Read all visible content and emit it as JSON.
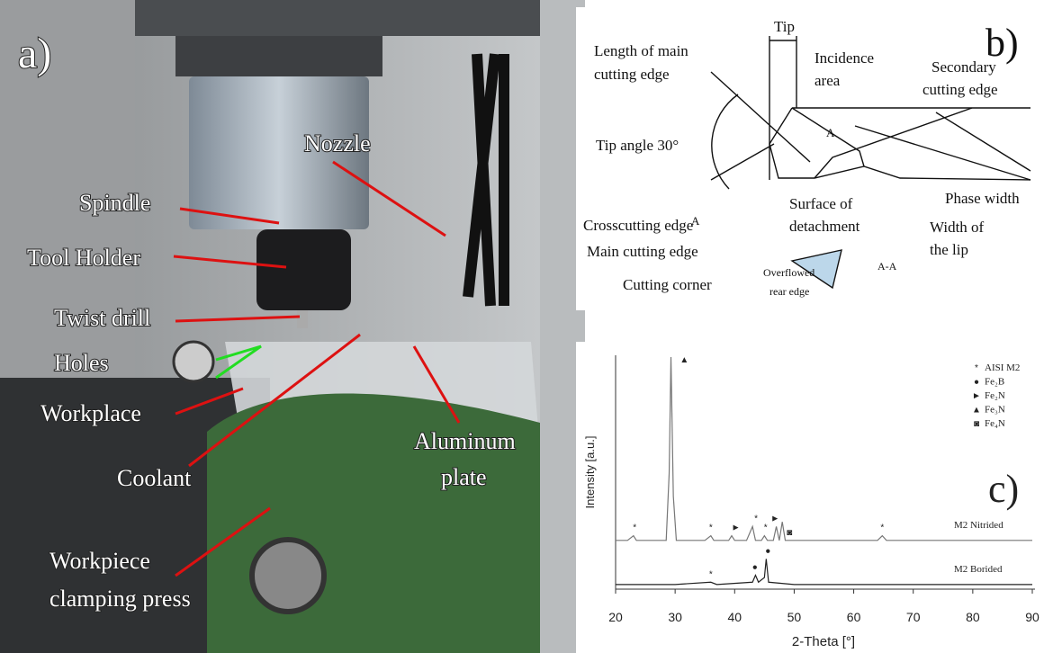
{
  "panel_a": {
    "label": "a)",
    "labels": {
      "nozzle": "Nozzle",
      "spindle": "Spindle",
      "tool_holder": "Tool Holder",
      "twist_drill": "Twist drill",
      "holes": "Holes",
      "workplace": "Workplace",
      "coolant": "Coolant",
      "aluminum_plate": [
        "Aluminum",
        "plate"
      ],
      "clamping_press": [
        "Workpiece",
        "clamping press"
      ]
    }
  },
  "panel_b": {
    "label": "b)",
    "labels": {
      "tip": "Tip",
      "length_main": [
        "Length of main",
        "cutting edge"
      ],
      "incidence": [
        "Incidence",
        "area"
      ],
      "secondary": [
        "Secondary",
        "cutting edge"
      ],
      "tip_angle": "Tip angle 30°",
      "section_a1": "A",
      "section_a2": "A",
      "phase_width": "Phase width",
      "crosscutting": "Crosscutting edge",
      "surface": [
        "Surface of",
        "detachment"
      ],
      "width_lip": [
        "Width of",
        "the lip"
      ],
      "main_edge": "Main cutting edge",
      "corner": "Cutting corner",
      "overflowed": [
        "Overflowed",
        "rear edge"
      ],
      "section_aa": "A-A"
    }
  },
  "chart_data": {
    "type": "line",
    "panel_label": "c)",
    "x_label": "2-Theta [°]",
    "y_label": "Intensity [a.u.]",
    "xlim": [
      20,
      90
    ],
    "xticks": [
      20,
      30,
      40,
      50,
      60,
      70,
      80,
      90
    ],
    "ylim": [
      0,
      100
    ],
    "legend": [
      {
        "symbol": "*",
        "label": "AISI M2"
      },
      {
        "symbol": "●",
        "label": "Fe₂B"
      },
      {
        "symbol": "►",
        "label": "Fe₂N"
      },
      {
        "symbol": "▲",
        "label": "Fe₃N"
      },
      {
        "symbol": "◙",
        "label": "Fe₄N"
      }
    ],
    "series": [
      {
        "name": "M2 Nitrided",
        "color": "#777777",
        "x": [
          20,
          22,
          23,
          23.5,
          26,
          28.5,
          29,
          29.3,
          29.7,
          30.2,
          33,
          35,
          36,
          36.5,
          39,
          39.5,
          40,
          42,
          43,
          43.5,
          44.5,
          45,
          45.5,
          46.5,
          47,
          47.5,
          48,
          48.5,
          52,
          58,
          64,
          64.8,
          65.5,
          75,
          90
        ],
        "values": [
          21,
          21,
          23,
          21,
          21,
          21,
          50,
          100,
          40,
          21,
          21,
          21,
          23,
          21,
          21,
          23,
          21,
          21,
          27,
          21,
          21,
          23,
          21,
          21,
          27,
          21,
          29,
          21,
          21,
          21,
          21,
          23,
          21,
          21,
          21
        ],
        "peak_markers": [
          {
            "x": 23.2,
            "symbol": "*"
          },
          {
            "x": 36,
            "symbol": "*"
          },
          {
            "x": 40.2,
            "symbol": "►"
          },
          {
            "x": 43.6,
            "symbol": "*"
          },
          {
            "x": 45.2,
            "symbol": "*"
          },
          {
            "x": 46.8,
            "symbol": "►"
          },
          {
            "x": 49.2,
            "symbol": "◙"
          },
          {
            "x": 64.8,
            "symbol": "*"
          }
        ]
      },
      {
        "name": "M2 Borided",
        "color": "#222222",
        "x": [
          20,
          30,
          36,
          37,
          43,
          43.5,
          44,
          45,
          45.3,
          45.7,
          50,
          60,
          70,
          80,
          90
        ],
        "values": [
          2,
          2,
          3,
          2,
          3,
          6,
          3,
          5,
          13,
          3,
          2,
          2,
          2,
          2,
          2
        ],
        "peak_markers": [
          {
            "x": 36,
            "symbol": "*"
          },
          {
            "x": 43.4,
            "symbol": "●"
          },
          {
            "x": 45.6,
            "symbol": "●"
          }
        ]
      }
    ]
  }
}
